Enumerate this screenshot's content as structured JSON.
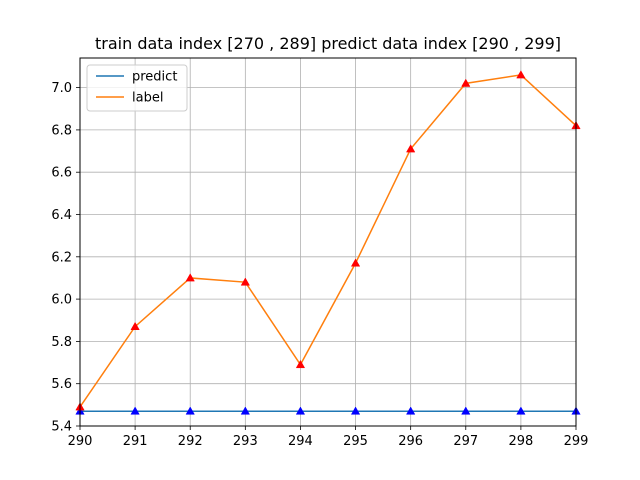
{
  "chart_data": {
    "type": "line",
    "title": "train data index [270 , 289]    predict data index [290 , 299]",
    "xlabel": "",
    "ylabel": "",
    "x": [
      290,
      291,
      292,
      293,
      294,
      295,
      296,
      297,
      298,
      299
    ],
    "xlim": [
      290,
      299
    ],
    "ylim": [
      5.4,
      7.14
    ],
    "x_ticks": [
      "290",
      "291",
      "292",
      "293",
      "294",
      "295",
      "296",
      "297",
      "298",
      "299"
    ],
    "y_ticks": [
      5.4,
      5.6,
      5.8,
      6.0,
      6.2,
      6.4,
      6.6,
      6.8,
      7.0
    ],
    "y_tick_labels": [
      "5.4",
      "5.6",
      "5.8",
      "6.0",
      "6.2",
      "6.4",
      "6.6",
      "6.8",
      "7.0"
    ],
    "grid": true,
    "legend_position": "top-left",
    "series": [
      {
        "name": "predict",
        "color": "#1f77b4",
        "marker_color": "#0000ff",
        "marker": "triangle",
        "values": [
          5.47,
          5.47,
          5.47,
          5.47,
          5.47,
          5.47,
          5.47,
          5.47,
          5.47,
          5.47
        ]
      },
      {
        "name": "label",
        "color": "#ff7f0e",
        "marker_color": "#ff0000",
        "marker": "triangle",
        "values": [
          5.49,
          5.87,
          6.1,
          6.08,
          5.69,
          6.17,
          6.71,
          7.02,
          7.06,
          6.82
        ]
      }
    ]
  }
}
